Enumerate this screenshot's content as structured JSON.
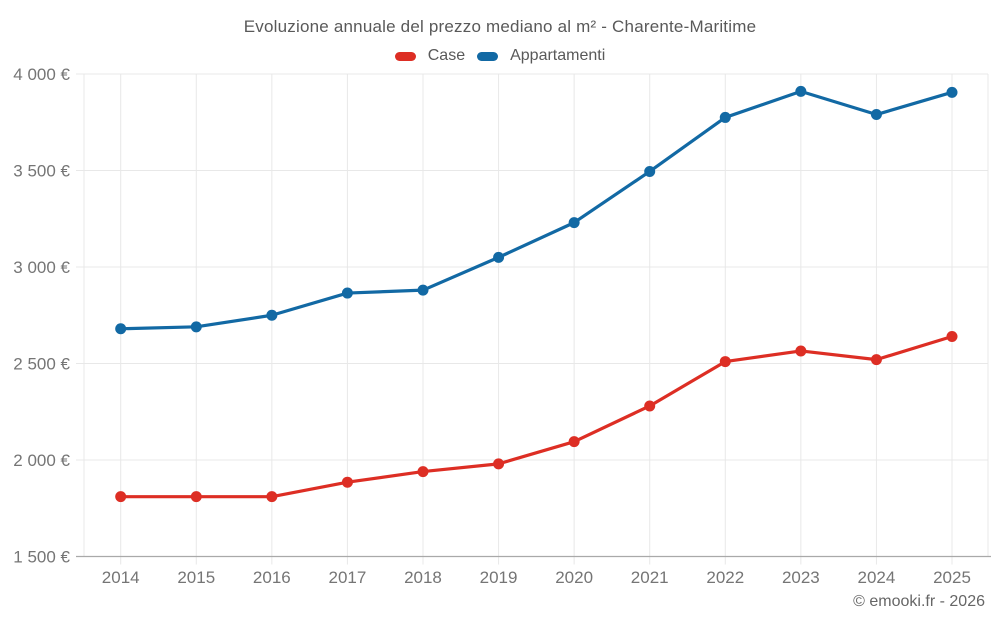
{
  "chart_data": {
    "type": "line",
    "title": "Evoluzione annuale del prezzo mediano al m² - Charente-Maritime",
    "categories": [
      "2014",
      "2015",
      "2016",
      "2017",
      "2018",
      "2019",
      "2020",
      "2021",
      "2022",
      "2023",
      "2024",
      "2025"
    ],
    "series": [
      {
        "name": "Case",
        "color": "#dd2e24",
        "values": [
          1810,
          1810,
          1810,
          1885,
          1940,
          1980,
          2095,
          2280,
          2510,
          2565,
          2520,
          2640
        ]
      },
      {
        "name": "Appartamenti",
        "color": "#1269a4",
        "values": [
          2680,
          2690,
          2750,
          2865,
          2880,
          3050,
          3230,
          3495,
          3775,
          3910,
          3790,
          3905
        ]
      }
    ],
    "xlabel": "",
    "ylabel": "",
    "ylim": [
      1500,
      4000
    ],
    "yticks": [
      1500,
      2000,
      2500,
      3000,
      3500,
      4000
    ],
    "ytick_labels": [
      "1 500 €",
      "2 000 €",
      "2 500 €",
      "3 000 €",
      "3 500 €",
      "4 000 €"
    ],
    "grid": true,
    "legend_position": "top",
    "colors": {
      "grid": "#e8e8e8",
      "axis": "#a9a9a9",
      "tick_label": "#757575",
      "title": "#595959"
    }
  },
  "footer": {
    "text": "© emooki.fr - 2026"
  }
}
